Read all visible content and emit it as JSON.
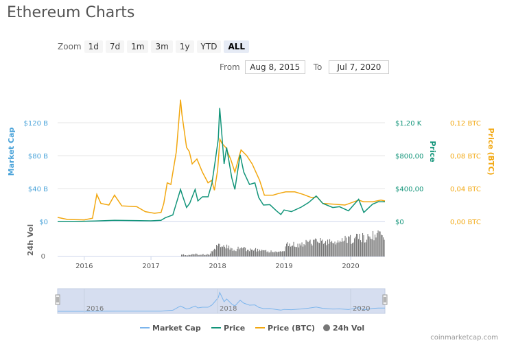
{
  "page": {
    "title": "Ethereum Charts",
    "credit": "coinmarketcap.com"
  },
  "zoom": {
    "label": "Zoom",
    "buttons": [
      "1d",
      "7d",
      "1m",
      "3m",
      "1y",
      "YTD",
      "ALL"
    ],
    "active": "ALL"
  },
  "range": {
    "from_label": "From",
    "from_value": "Aug 8, 2015",
    "to_label": "To",
    "to_value": "Jul 7, 2020"
  },
  "colors": {
    "market_cap": "#7cb5ec",
    "price": "#119479",
    "price_btc": "#f2a70f",
    "volume": "#777777",
    "navigator_fill": "#cfd9ee"
  },
  "chart_data": {
    "type": "line",
    "x_axis": {
      "ticks": [
        "2016",
        "2017",
        "2018",
        "2019",
        "2020"
      ]
    },
    "axes": {
      "market_cap": {
        "label": "Market Cap",
        "ticks": [
          "$0",
          "$40 B",
          "$80 B",
          "$120 B"
        ],
        "range": [
          0,
          160
        ]
      },
      "price": {
        "label": "Price",
        "ticks": [
          "$0",
          "$400,00",
          "$800,00",
          "$1,20 K"
        ],
        "range": [
          0,
          1600
        ]
      },
      "price_btc": {
        "label": "Price (BTC)",
        "ticks": [
          "0,00 BTC",
          "0,04 BTC",
          "0,08 BTC",
          "0,12 BTC"
        ],
        "range": [
          0,
          0.16
        ]
      },
      "volume": {
        "label": "24h Vol",
        "ticks": [
          "0"
        ]
      }
    },
    "series": [
      {
        "name": "Price",
        "unit": "USD",
        "points": [
          [
            "2015-08-08",
            1
          ],
          [
            "2015-12-01",
            1
          ],
          [
            "2016-03-01",
            7
          ],
          [
            "2016-06-15",
            15
          ],
          [
            "2016-10-01",
            12
          ],
          [
            "2016-12-31",
            8
          ],
          [
            "2017-02-25",
            14
          ],
          [
            "2017-03-20",
            45
          ],
          [
            "2017-05-01",
            80
          ],
          [
            "2017-06-12",
            390
          ],
          [
            "2017-06-25",
            300
          ],
          [
            "2017-07-15",
            170
          ],
          [
            "2017-08-01",
            220
          ],
          [
            "2017-08-31",
            390
          ],
          [
            "2017-09-15",
            250
          ],
          [
            "2017-10-10",
            300
          ],
          [
            "2017-11-10",
            300
          ],
          [
            "2017-12-01",
            460
          ],
          [
            "2017-12-20",
            750
          ],
          [
            "2018-01-05",
            1000
          ],
          [
            "2018-01-13",
            1380
          ],
          [
            "2018-01-25",
            1050
          ],
          [
            "2018-02-06",
            700
          ],
          [
            "2018-02-20",
            900
          ],
          [
            "2018-03-20",
            530
          ],
          [
            "2018-04-06",
            390
          ],
          [
            "2018-05-05",
            810
          ],
          [
            "2018-05-25",
            600
          ],
          [
            "2018-06-25",
            450
          ],
          [
            "2018-07-25",
            470
          ],
          [
            "2018-08-15",
            290
          ],
          [
            "2018-09-10",
            200
          ],
          [
            "2018-10-15",
            205
          ],
          [
            "2018-11-20",
            130
          ],
          [
            "2018-12-14",
            85
          ],
          [
            "2019-01-01",
            140
          ],
          [
            "2019-02-10",
            120
          ],
          [
            "2019-04-05",
            175
          ],
          [
            "2019-05-15",
            230
          ],
          [
            "2019-06-26",
            310
          ],
          [
            "2019-08-01",
            220
          ],
          [
            "2019-09-25",
            170
          ],
          [
            "2019-11-01",
            180
          ],
          [
            "2019-12-20",
            130
          ],
          [
            "2020-02-14",
            270
          ],
          [
            "2020-03-13",
            110
          ],
          [
            "2020-04-30",
            210
          ],
          [
            "2020-06-01",
            240
          ],
          [
            "2020-07-07",
            240
          ]
        ]
      },
      {
        "name": "Price (BTC)",
        "unit": "BTC",
        "points": [
          [
            "2015-08-08",
            0.005
          ],
          [
            "2015-10-01",
            0.0025
          ],
          [
            "2016-01-01",
            0.002
          ],
          [
            "2016-02-15",
            0.004
          ],
          [
            "2016-03-10",
            0.033
          ],
          [
            "2016-04-01",
            0.022
          ],
          [
            "2016-05-15",
            0.02
          ],
          [
            "2016-06-15",
            0.032
          ],
          [
            "2016-07-25",
            0.019
          ],
          [
            "2016-09-01",
            0.0185
          ],
          [
            "2016-10-15",
            0.018
          ],
          [
            "2016-12-01",
            0.012
          ],
          [
            "2017-01-20",
            0.01
          ],
          [
            "2017-02-25",
            0.011
          ],
          [
            "2017-03-12",
            0.022
          ],
          [
            "2017-03-31",
            0.047
          ],
          [
            "2017-04-20",
            0.045
          ],
          [
            "2017-05-20",
            0.085
          ],
          [
            "2017-06-12",
            0.148
          ],
          [
            "2017-06-20",
            0.13
          ],
          [
            "2017-07-15",
            0.09
          ],
          [
            "2017-07-30",
            0.085
          ],
          [
            "2017-08-15",
            0.07
          ],
          [
            "2017-09-10",
            0.076
          ],
          [
            "2017-10-10",
            0.06
          ],
          [
            "2017-11-10",
            0.047
          ],
          [
            "2017-11-30",
            0.05
          ],
          [
            "2017-12-15",
            0.038
          ],
          [
            "2018-01-01",
            0.062
          ],
          [
            "2018-01-14",
            0.1
          ],
          [
            "2018-01-25",
            0.095
          ],
          [
            "2018-02-15",
            0.09
          ],
          [
            "2018-03-15",
            0.075
          ],
          [
            "2018-04-06",
            0.06
          ],
          [
            "2018-05-01",
            0.08
          ],
          [
            "2018-05-10",
            0.087
          ],
          [
            "2018-06-10",
            0.08
          ],
          [
            "2018-07-10",
            0.07
          ],
          [
            "2018-08-20",
            0.05
          ],
          [
            "2018-09-15",
            0.032
          ],
          [
            "2018-11-01",
            0.032
          ],
          [
            "2018-12-01",
            0.034
          ],
          [
            "2019-01-10",
            0.036
          ],
          [
            "2019-03-01",
            0.036
          ],
          [
            "2019-04-15",
            0.033
          ],
          [
            "2019-06-01",
            0.029
          ],
          [
            "2019-07-01",
            0.03
          ],
          [
            "2019-08-01",
            0.022
          ],
          [
            "2019-10-01",
            0.021
          ],
          [
            "2019-12-01",
            0.02
          ],
          [
            "2020-02-14",
            0.026
          ],
          [
            "2020-03-12",
            0.024
          ],
          [
            "2020-05-01",
            0.024
          ],
          [
            "2020-06-15",
            0.026
          ],
          [
            "2020-07-07",
            0.025
          ]
        ]
      }
    ],
    "navigator": {
      "ticks": [
        "2016",
        "2018",
        "2020"
      ]
    },
    "legend": {
      "position": "bottom",
      "items": [
        "Market Cap",
        "Price",
        "Price (BTC)",
        "24h Vol"
      ]
    }
  }
}
